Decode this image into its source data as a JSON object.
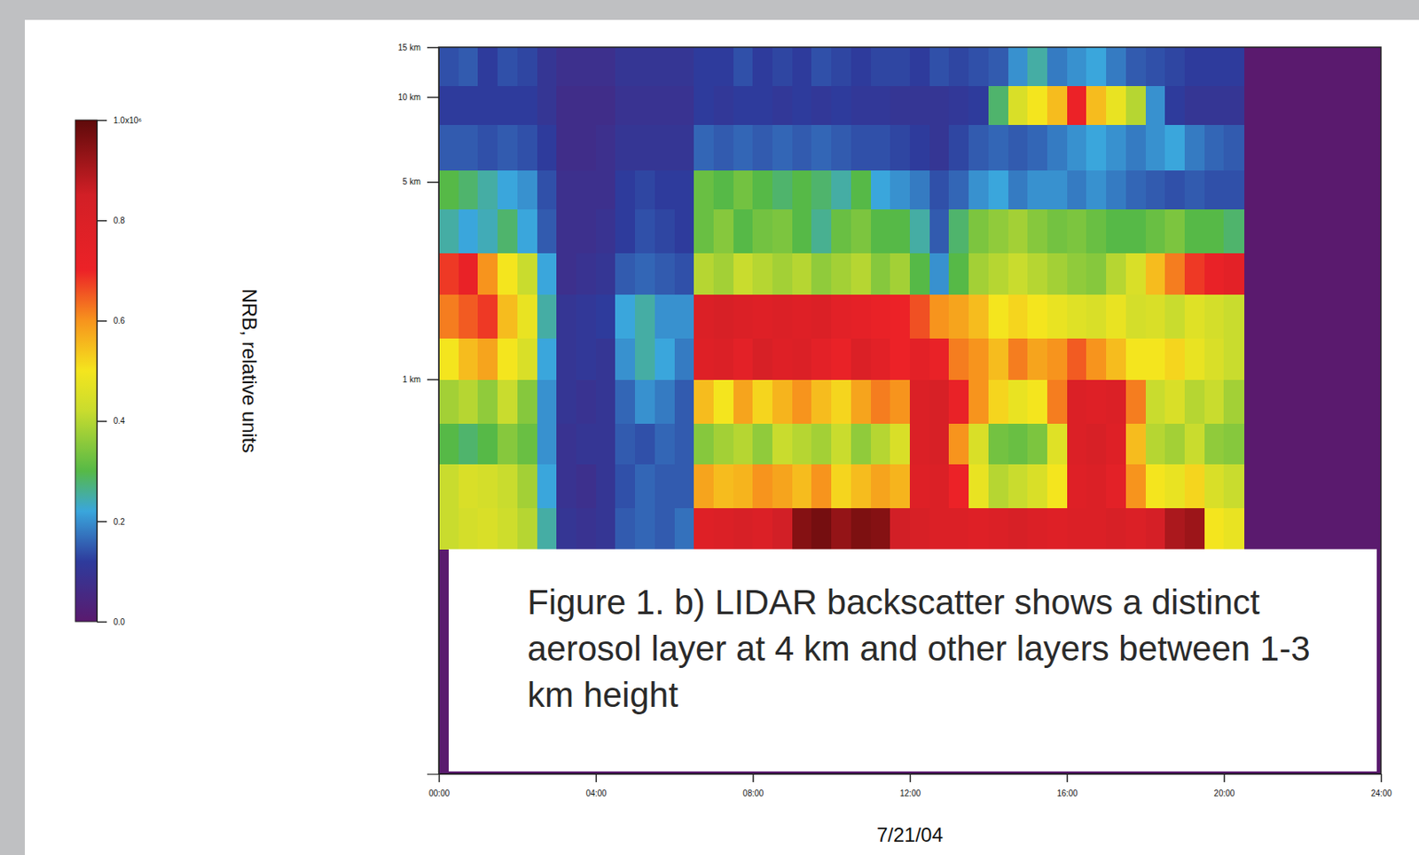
{
  "chart_data": {
    "type": "heatmap",
    "log": "y",
    "xlim": [
      0,
      24
    ],
    "xticks": [
      {
        "value": 0,
        "label": "00:00"
      },
      {
        "value": 4,
        "label": "04:00"
      },
      {
        "value": 8,
        "label": "08:00"
      },
      {
        "value": 12,
        "label": "12:00"
      },
      {
        "value": 16,
        "label": "16:00"
      },
      {
        "value": 20,
        "label": "20:00"
      },
      {
        "value": 24,
        "label": "24:00"
      }
    ],
    "x_label": "7/21/04",
    "ylim": [
      0.04,
      15
    ],
    "yticks": [
      {
        "value": 1,
        "label": "1 km"
      },
      {
        "value": 5,
        "label": "5 km"
      },
      {
        "value": 10,
        "label": "10 km"
      },
      {
        "value": 15,
        "label": "15 km"
      }
    ],
    "annotation": "Figure 1. b) LIDAR backscatter shows a distinct aerosol layer at 4 km and other layers between 1-3 km height",
    "colorbar": {
      "title": "NRB, relative units",
      "range": [
        0,
        1
      ],
      "ticks": [
        {
          "value": 0,
          "label": "0.0"
        },
        0.2,
        0.4,
        0.6,
        0.8,
        {
          "value": 1,
          "label": "1.0x10⁶"
        }
      ]
    },
    "x_bins": [
      0,
      0.5,
      1,
      1.5,
      2,
      2.5,
      3,
      3.5,
      4,
      4.5,
      5,
      5.5,
      6,
      6.5,
      7,
      7.5,
      8,
      8.5,
      9,
      9.5,
      10,
      10.5,
      11,
      11.5,
      12,
      12.5,
      13,
      13.5,
      14,
      14.5,
      15,
      15.5,
      16,
      16.5,
      17,
      17.5,
      18,
      18.5,
      19,
      19.5,
      20,
      20.5
    ],
    "y_bins": [
      0.25,
      0.35,
      0.5,
      0.7,
      1.0,
      1.4,
      2.0,
      2.8,
      4.0,
      5.5,
      8,
      11,
      15
    ],
    "z": [
      [
        0.42,
        0.44,
        0.45,
        0.43,
        0.4,
        0.25,
        0.1,
        0.09,
        0.1,
        0.15,
        0.16,
        0.15,
        0.17,
        0.78,
        0.8,
        0.82,
        0.8,
        0.85,
        0.95,
        0.97,
        0.93,
        0.96,
        0.95,
        0.85,
        0.82,
        0.8,
        0.8,
        0.78,
        0.8,
        0.82,
        0.8,
        0.78,
        0.8,
        0.8,
        0.82,
        0.8,
        0.83,
        0.9,
        0.92,
        0.5,
        0.48
      ],
      [
        0.42,
        0.45,
        0.44,
        0.42,
        0.38,
        0.22,
        0.09,
        0.08,
        0.1,
        0.14,
        0.16,
        0.15,
        0.15,
        0.58,
        0.55,
        0.56,
        0.6,
        0.58,
        0.55,
        0.6,
        0.52,
        0.55,
        0.58,
        0.56,
        0.78,
        0.8,
        0.7,
        0.48,
        0.4,
        0.42,
        0.45,
        0.5,
        0.78,
        0.8,
        0.75,
        0.6,
        0.5,
        0.48,
        0.52,
        0.45,
        0.42
      ],
      [
        0.3,
        0.28,
        0.3,
        0.35,
        0.32,
        0.2,
        0.09,
        0.1,
        0.1,
        0.15,
        0.14,
        0.16,
        0.15,
        0.35,
        0.38,
        0.4,
        0.36,
        0.42,
        0.4,
        0.38,
        0.42,
        0.36,
        0.4,
        0.45,
        0.8,
        0.82,
        0.6,
        0.45,
        0.33,
        0.32,
        0.34,
        0.46,
        0.8,
        0.82,
        0.78,
        0.55,
        0.4,
        0.38,
        0.42,
        0.36,
        0.35
      ],
      [
        0.38,
        0.4,
        0.36,
        0.42,
        0.35,
        0.2,
        0.1,
        0.09,
        0.1,
        0.16,
        0.2,
        0.18,
        0.15,
        0.55,
        0.5,
        0.58,
        0.52,
        0.56,
        0.6,
        0.55,
        0.52,
        0.58,
        0.62,
        0.6,
        0.8,
        0.82,
        0.72,
        0.6,
        0.52,
        0.48,
        0.5,
        0.62,
        0.8,
        0.78,
        0.8,
        0.62,
        0.42,
        0.45,
        0.4,
        0.42,
        0.38
      ],
      [
        0.5,
        0.55,
        0.58,
        0.5,
        0.45,
        0.22,
        0.1,
        0.11,
        0.1,
        0.2,
        0.25,
        0.22,
        0.18,
        0.78,
        0.8,
        0.75,
        0.82,
        0.78,
        0.8,
        0.75,
        0.72,
        0.8,
        0.76,
        0.7,
        0.75,
        0.72,
        0.62,
        0.6,
        0.55,
        0.62,
        0.58,
        0.6,
        0.65,
        0.6,
        0.55,
        0.5,
        0.5,
        0.52,
        0.48,
        0.45,
        0.42
      ],
      [
        0.62,
        0.65,
        0.68,
        0.55,
        0.48,
        0.25,
        0.1,
        0.11,
        0.12,
        0.22,
        0.25,
        0.2,
        0.2,
        0.8,
        0.82,
        0.8,
        0.78,
        0.8,
        0.78,
        0.8,
        0.76,
        0.74,
        0.72,
        0.7,
        0.66,
        0.6,
        0.58,
        0.55,
        0.5,
        0.52,
        0.5,
        0.48,
        0.46,
        0.45,
        0.48,
        0.44,
        0.45,
        0.42,
        0.46,
        0.44,
        0.42
      ],
      [
        0.68,
        0.72,
        0.6,
        0.5,
        0.42,
        0.22,
        0.08,
        0.09,
        0.1,
        0.15,
        0.16,
        0.15,
        0.14,
        0.4,
        0.38,
        0.42,
        0.4,
        0.38,
        0.4,
        0.36,
        0.38,
        0.4,
        0.35,
        0.38,
        0.3,
        0.2,
        0.3,
        0.38,
        0.4,
        0.42,
        0.4,
        0.38,
        0.36,
        0.35,
        0.4,
        0.45,
        0.55,
        0.62,
        0.68,
        0.72,
        0.75
      ],
      [
        0.25,
        0.22,
        0.24,
        0.28,
        0.22,
        0.15,
        0.08,
        0.08,
        0.09,
        0.12,
        0.14,
        0.13,
        0.12,
        0.32,
        0.35,
        0.3,
        0.33,
        0.34,
        0.3,
        0.26,
        0.32,
        0.34,
        0.3,
        0.3,
        0.25,
        0.15,
        0.28,
        0.34,
        0.36,
        0.38,
        0.35,
        0.33,
        0.34,
        0.32,
        0.3,
        0.3,
        0.32,
        0.34,
        0.3,
        0.3,
        0.28
      ],
      [
        0.3,
        0.28,
        0.25,
        0.22,
        0.2,
        0.14,
        0.08,
        0.08,
        0.08,
        0.12,
        0.13,
        0.12,
        0.12,
        0.32,
        0.3,
        0.33,
        0.3,
        0.28,
        0.3,
        0.28,
        0.25,
        0.3,
        0.22,
        0.2,
        0.18,
        0.14,
        0.16,
        0.2,
        0.22,
        0.18,
        0.2,
        0.2,
        0.18,
        0.2,
        0.18,
        0.16,
        0.15,
        0.14,
        0.15,
        0.14,
        0.14
      ],
      [
        0.15,
        0.15,
        0.14,
        0.15,
        0.14,
        0.12,
        0.07,
        0.07,
        0.08,
        0.1,
        0.1,
        0.1,
        0.1,
        0.16,
        0.15,
        0.16,
        0.15,
        0.16,
        0.15,
        0.16,
        0.15,
        0.14,
        0.14,
        0.13,
        0.12,
        0.1,
        0.13,
        0.15,
        0.16,
        0.15,
        0.16,
        0.18,
        0.2,
        0.22,
        0.2,
        0.18,
        0.2,
        0.22,
        0.18,
        0.16,
        0.15
      ],
      [
        0.12,
        0.12,
        0.12,
        0.12,
        0.12,
        0.1,
        0.07,
        0.07,
        0.07,
        0.09,
        0.09,
        0.09,
        0.09,
        0.12,
        0.11,
        0.12,
        0.12,
        0.11,
        0.12,
        0.11,
        0.12,
        0.11,
        0.11,
        0.1,
        0.1,
        0.1,
        0.11,
        0.12,
        0.28,
        0.45,
        0.5,
        0.55,
        0.7,
        0.55,
        0.48,
        0.4,
        0.2,
        0.12,
        0.1,
        0.1,
        0.1
      ],
      [
        0.14,
        0.15,
        0.12,
        0.14,
        0.13,
        0.1,
        0.08,
        0.08,
        0.08,
        0.1,
        0.1,
        0.1,
        0.1,
        0.12,
        0.12,
        0.14,
        0.12,
        0.13,
        0.12,
        0.14,
        0.13,
        0.12,
        0.13,
        0.13,
        0.12,
        0.14,
        0.13,
        0.14,
        0.15,
        0.2,
        0.25,
        0.18,
        0.2,
        0.22,
        0.18,
        0.15,
        0.14,
        0.13,
        0.12,
        0.12,
        0.12
      ]
    ]
  }
}
